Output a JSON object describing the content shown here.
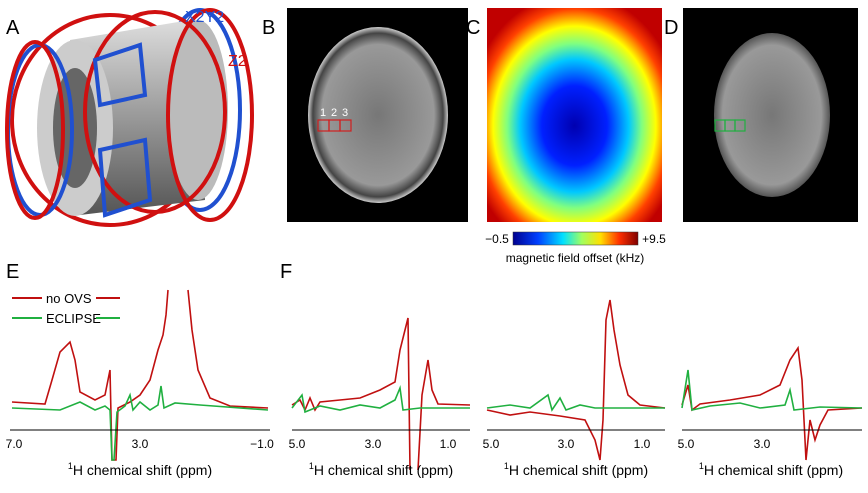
{
  "panels": {
    "A": {
      "label": "A",
      "coil_labels": [
        "X2Y2",
        "Z2"
      ]
    },
    "B": {
      "label": "B",
      "voxel_labels": [
        "1",
        "2",
        "3"
      ]
    },
    "C": {
      "label": "C",
      "colorbar": {
        "min_label": "−0.5",
        "max_label": "+9.5",
        "title": "magnetic field offset (kHz)"
      }
    },
    "D": {
      "label": "D"
    },
    "E": {
      "label": "E",
      "legend": [
        "no OVS",
        "ECLIPSE"
      ],
      "ticks": [
        "7.0",
        "3.0",
        "−1.0"
      ]
    },
    "F": {
      "label": "F",
      "plots": [
        {
          "ticks": [
            "5.0",
            "3.0",
            "1.0"
          ]
        },
        {
          "ticks": [
            "5.0",
            "3.0",
            "1.0"
          ]
        },
        {
          "ticks": [
            "5.0",
            "3.0"
          ]
        }
      ]
    }
  },
  "x_axis_label": {
    "superscript": "1",
    "text": "H chemical shift (ppm)"
  }
}
